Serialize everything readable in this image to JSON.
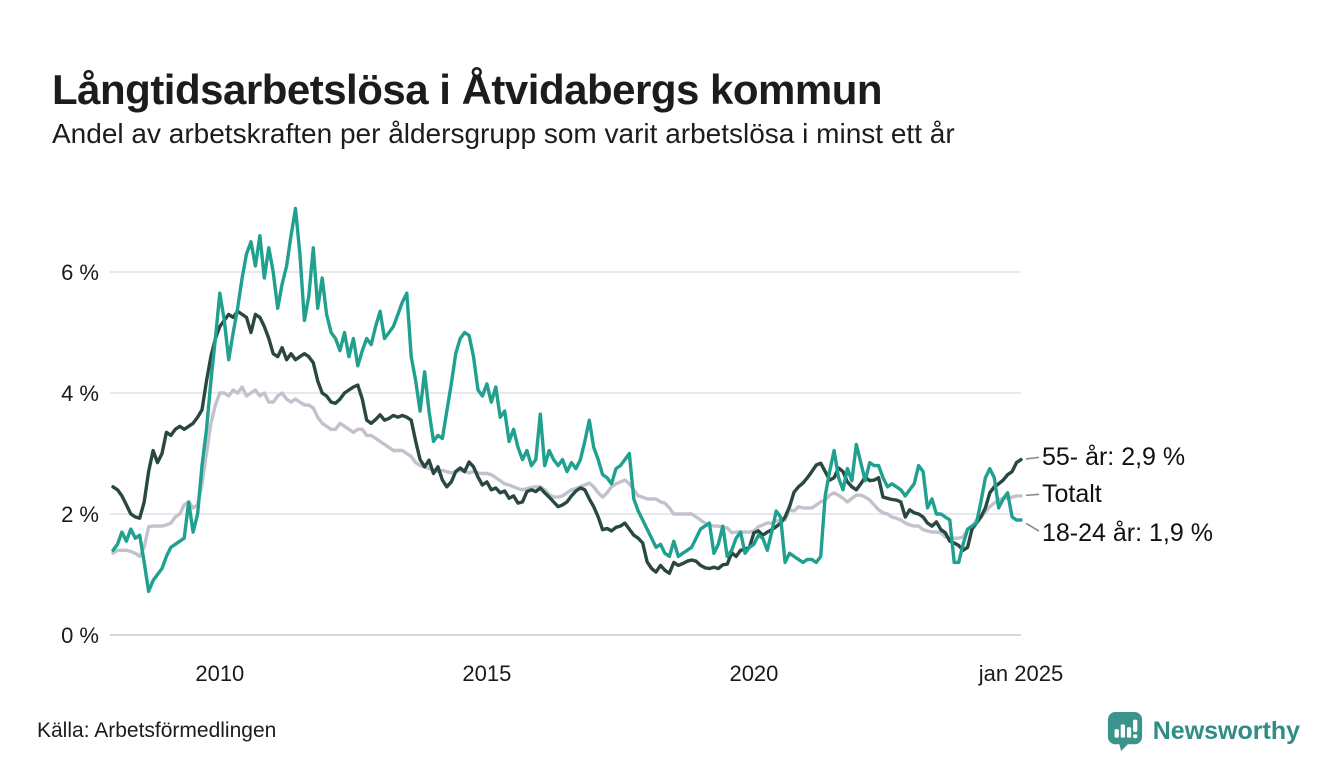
{
  "header": {
    "title": "Långtidsarbetslösa i Åtvidabergs kommun",
    "subtitle": "Andel av arbetskraften per åldersgrupp som varit arbetslösa i minst ett år"
  },
  "chart_data": {
    "type": "line",
    "title": "Långtidsarbetslösa i Åtvidabergs kommun",
    "subtitle": "Andel av arbetskraften per åldersgrupp som varit arbetslösa i minst ett år",
    "unit": "%",
    "grid": "horizontal",
    "legend_position": "right-end-labels",
    "x_axis": {
      "start": "2008-01",
      "end": "2025-01",
      "interval": "month",
      "ticks": [
        {
          "label": "2010",
          "month": 24
        },
        {
          "label": "2015",
          "month": 84
        },
        {
          "label": "2020",
          "month": 144
        },
        {
          "label": "jan 2025",
          "month": 204
        }
      ]
    },
    "y_axis": {
      "range": [
        0,
        7.3
      ],
      "ticks": [
        {
          "label": "0 %",
          "value": 0
        },
        {
          "label": "2 %",
          "value": 2
        },
        {
          "label": "4 %",
          "value": 4
        },
        {
          "label": "6 %",
          "value": 6
        }
      ]
    },
    "series": [
      {
        "name": "55- år",
        "color": "#2a4742",
        "end_label": "55- år: 2,9 %",
        "values": [
          2.45,
          2.4,
          2.3,
          2.15,
          2.0,
          1.95,
          1.93,
          2.2,
          2.7,
          3.05,
          2.85,
          3.0,
          3.35,
          3.3,
          3.4,
          3.45,
          3.4,
          3.45,
          3.5,
          3.6,
          3.72,
          4.2,
          4.6,
          4.9,
          5.1,
          5.2,
          5.3,
          5.25,
          5.35,
          5.3,
          5.25,
          5.0,
          5.3,
          5.25,
          5.1,
          4.9,
          4.65,
          4.6,
          4.75,
          4.55,
          4.65,
          4.55,
          4.6,
          4.65,
          4.6,
          4.5,
          4.2,
          4.0,
          3.95,
          3.85,
          3.83,
          3.9,
          4.0,
          4.05,
          4.1,
          4.13,
          3.9,
          3.55,
          3.5,
          3.56,
          3.64,
          3.55,
          3.58,
          3.63,
          3.6,
          3.63,
          3.6,
          3.55,
          3.2,
          2.9,
          2.78,
          2.89,
          2.67,
          2.78,
          2.56,
          2.45,
          2.53,
          2.7,
          2.76,
          2.7,
          2.86,
          2.78,
          2.61,
          2.48,
          2.53,
          2.4,
          2.43,
          2.35,
          2.38,
          2.26,
          2.3,
          2.18,
          2.2,
          2.37,
          2.4,
          2.37,
          2.43,
          2.35,
          2.28,
          2.2,
          2.12,
          2.15,
          2.2,
          2.3,
          2.38,
          2.43,
          2.4,
          2.25,
          2.12,
          1.95,
          1.74,
          1.76,
          1.72,
          1.78,
          1.8,
          1.85,
          1.75,
          1.65,
          1.6,
          1.52,
          1.21,
          1.1,
          1.04,
          1.15,
          1.07,
          1.02,
          1.2,
          1.15,
          1.18,
          1.22,
          1.24,
          1.22,
          1.15,
          1.11,
          1.1,
          1.12,
          1.1,
          1.16,
          1.17,
          1.36,
          1.3,
          1.4,
          1.42,
          1.45,
          1.69,
          1.72,
          1.65,
          1.7,
          1.74,
          1.79,
          1.85,
          1.95,
          2.12,
          2.36,
          2.45,
          2.51,
          2.6,
          2.7,
          2.81,
          2.84,
          2.7,
          2.56,
          2.6,
          2.76,
          2.7,
          2.53,
          2.45,
          2.4,
          2.5,
          2.61,
          2.55,
          2.56,
          2.6,
          2.28,
          2.26,
          2.24,
          2.23,
          2.2,
          1.95,
          2.07,
          2.02,
          2.0,
          1.95,
          1.85,
          1.8,
          1.87,
          1.74,
          1.69,
          1.55,
          1.52,
          1.48,
          1.4,
          1.45,
          1.75,
          1.85,
          1.95,
          2.1,
          2.35,
          2.45,
          2.5,
          2.56,
          2.65,
          2.7,
          2.85,
          2.9
        ]
      },
      {
        "name": "Totalt",
        "color": "#c3c1cc",
        "end_label": "Totalt",
        "values": [
          1.35,
          1.4,
          1.4,
          1.4,
          1.38,
          1.35,
          1.3,
          1.45,
          1.79,
          1.8,
          1.8,
          1.8,
          1.82,
          1.85,
          1.95,
          2.0,
          2.15,
          2.2,
          2.1,
          2.15,
          2.5,
          3.0,
          3.5,
          3.8,
          4.0,
          4.0,
          3.95,
          4.05,
          4.0,
          4.1,
          3.95,
          4.0,
          4.05,
          3.95,
          4.0,
          3.85,
          3.85,
          3.95,
          4.0,
          3.9,
          3.85,
          3.9,
          3.85,
          3.8,
          3.8,
          3.75,
          3.6,
          3.5,
          3.45,
          3.4,
          3.4,
          3.5,
          3.45,
          3.4,
          3.35,
          3.4,
          3.4,
          3.3,
          3.3,
          3.25,
          3.2,
          3.15,
          3.1,
          3.05,
          3.05,
          3.05,
          3.0,
          2.95,
          2.85,
          2.8,
          2.78,
          2.75,
          2.73,
          2.7,
          2.72,
          2.7,
          2.68,
          2.7,
          2.72,
          2.7,
          2.68,
          2.7,
          2.68,
          2.67,
          2.67,
          2.65,
          2.6,
          2.55,
          2.5,
          2.48,
          2.45,
          2.42,
          2.4,
          2.42,
          2.44,
          2.45,
          2.45,
          2.4,
          2.32,
          2.28,
          2.28,
          2.3,
          2.35,
          2.4,
          2.42,
          2.45,
          2.48,
          2.51,
          2.45,
          2.35,
          2.28,
          2.35,
          2.45,
          2.5,
          2.53,
          2.56,
          2.5,
          2.4,
          2.3,
          2.28,
          2.25,
          2.25,
          2.25,
          2.2,
          2.18,
          2.1,
          2.0,
          2.0,
          2.0,
          2.0,
          2.0,
          1.95,
          1.9,
          1.85,
          1.82,
          1.8,
          1.8,
          1.78,
          1.77,
          1.69,
          1.7,
          1.7,
          1.7,
          1.7,
          1.72,
          1.79,
          1.82,
          1.85,
          1.85,
          1.88,
          1.9,
          1.9,
          2.07,
          2.05,
          2.12,
          2.1,
          2.1,
          2.1,
          2.15,
          2.2,
          2.23,
          2.31,
          2.35,
          2.31,
          2.26,
          2.2,
          2.26,
          2.31,
          2.31,
          2.28,
          2.23,
          2.15,
          2.07,
          2.02,
          2.0,
          1.95,
          1.93,
          1.9,
          1.85,
          1.82,
          1.8,
          1.8,
          1.74,
          1.72,
          1.7,
          1.7,
          1.69,
          1.62,
          1.6,
          1.6,
          1.6,
          1.62,
          1.74,
          1.79,
          1.9,
          1.95,
          2.03,
          2.12,
          2.18,
          2.23,
          2.26,
          2.26,
          2.28,
          2.3,
          2.3
        ]
      },
      {
        "name": "18-24 år",
        "color": "#20a08f",
        "end_label": "18-24 år: 1,9 %",
        "values": [
          1.4,
          1.5,
          1.7,
          1.55,
          1.75,
          1.6,
          1.65,
          1.2,
          0.72,
          0.9,
          1.0,
          1.1,
          1.3,
          1.45,
          1.5,
          1.55,
          1.6,
          2.2,
          1.7,
          2.0,
          2.8,
          3.4,
          4.2,
          4.9,
          5.65,
          5.2,
          4.55,
          5.0,
          5.4,
          5.9,
          6.3,
          6.5,
          6.1,
          6.6,
          5.9,
          6.4,
          6.0,
          5.4,
          5.8,
          6.1,
          6.6,
          7.05,
          6.3,
          5.2,
          5.6,
          6.4,
          5.4,
          5.9,
          5.3,
          5.0,
          4.9,
          4.7,
          5.0,
          4.6,
          4.9,
          4.45,
          4.7,
          4.9,
          4.8,
          5.1,
          5.35,
          4.9,
          5.0,
          5.1,
          5.3,
          5.5,
          5.65,
          4.6,
          4.2,
          3.7,
          4.35,
          3.7,
          3.2,
          3.3,
          3.25,
          3.7,
          4.15,
          4.65,
          4.9,
          5.0,
          4.95,
          4.6,
          4.05,
          3.95,
          4.15,
          3.85,
          4.1,
          3.6,
          3.7,
          3.2,
          3.4,
          3.1,
          2.9,
          3.05,
          2.8,
          2.9,
          3.65,
          2.8,
          3.05,
          2.9,
          2.8,
          2.9,
          2.7,
          2.85,
          2.75,
          2.9,
          3.2,
          3.55,
          3.1,
          2.9,
          2.65,
          2.6,
          2.5,
          2.75,
          2.8,
          2.9,
          3.0,
          2.25,
          2.05,
          1.9,
          1.75,
          1.6,
          1.45,
          1.5,
          1.35,
          1.3,
          1.55,
          1.3,
          1.35,
          1.4,
          1.45,
          1.6,
          1.75,
          1.8,
          1.85,
          1.35,
          1.5,
          1.8,
          1.3,
          1.4,
          1.6,
          1.7,
          1.35,
          1.45,
          1.5,
          1.65,
          1.6,
          1.4,
          1.7,
          2.05,
          1.95,
          1.2,
          1.35,
          1.3,
          1.25,
          1.2,
          1.25,
          1.25,
          1.2,
          1.3,
          2.3,
          2.7,
          3.05,
          2.6,
          2.4,
          2.75,
          2.55,
          3.15,
          2.85,
          2.55,
          2.85,
          2.8,
          2.8,
          2.6,
          2.45,
          2.5,
          2.45,
          2.4,
          2.3,
          2.4,
          2.5,
          2.8,
          2.7,
          2.1,
          2.25,
          2.0,
          2.0,
          1.95,
          1.9,
          1.2,
          1.2,
          1.5,
          1.75,
          1.8,
          1.85,
          2.2,
          2.6,
          2.75,
          2.6,
          2.1,
          2.25,
          2.35,
          1.95,
          1.9,
          1.9
        ]
      }
    ]
  },
  "footer": {
    "source": "Källa: Arbetsförmedlingen",
    "brand": "Newsworthy"
  },
  "colors": {
    "background": "#ffffff",
    "text": "#1a1a1a",
    "gridline": "#e9e8ee",
    "baseline": "#d8d7dd",
    "connector": "#8a8a8a",
    "series_55": "#2a4742",
    "series_total": "#c3c1cc",
    "series_18_24": "#20a08f",
    "brand_teal": "#3b948b"
  }
}
